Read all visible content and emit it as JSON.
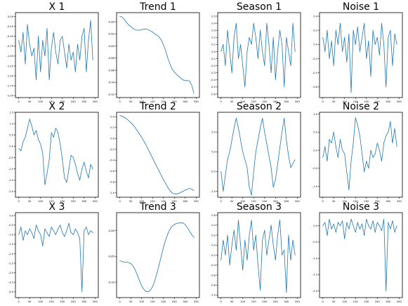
{
  "figure": {
    "line_color": "#1f77b4",
    "axes_color": "#000000",
    "background": "#ffffff"
  },
  "chart_data": [
    {
      "type": "line",
      "title": "X 1",
      "xlabel": "",
      "ylabel": "",
      "xlim": [
        -15,
        365
      ],
      "ylim": [
        -2.05,
        0.1
      ],
      "xticks": [
        0,
        50,
        100,
        150,
        200,
        250,
        300,
        350
      ],
      "yticks": [
        0.0,
        -0.25,
        -0.5,
        -0.75,
        -1.0,
        -1.25,
        -1.5,
        -1.75,
        -2.0
      ],
      "ytick_labels": [
        "0.00",
        "-0.25",
        "-0.50",
        "-0.75",
        "-1.00",
        "-1.25",
        "-1.50",
        "-1.75",
        "-2.00"
      ],
      "x": [
        0,
        10,
        20,
        30,
        40,
        50,
        60,
        70,
        80,
        90,
        100,
        110,
        120,
        130,
        140,
        150,
        160,
        170,
        180,
        190,
        200,
        210,
        220,
        230,
        240,
        250,
        260,
        270,
        280,
        290,
        300,
        310,
        320,
        330,
        340
      ],
      "values": [
        -0.6,
        -0.9,
        -0.4,
        -1.2,
        -0.2,
        -0.7,
        -1.0,
        -0.8,
        -1.6,
        -0.5,
        -1.4,
        -0.6,
        -1.0,
        -0.3,
        -1.6,
        -0.8,
        -0.4,
        -0.9,
        -1.2,
        -0.6,
        -0.5,
        -0.9,
        -1.3,
        -0.7,
        -1.1,
        -0.9,
        -1.4,
        -0.7,
        -1.1,
        -0.5,
        -0.3,
        -1.4,
        -0.6,
        -0.1,
        -1.1
      ]
    },
    {
      "type": "line",
      "title": "Trend 1",
      "xlabel": "",
      "ylabel": "",
      "xlim": [
        -15,
        365
      ],
      "ylim": [
        -0.925,
        -0.785
      ],
      "xticks": [
        0,
        50,
        100,
        150,
        200,
        250,
        300,
        350
      ],
      "yticks": [
        -0.8,
        -0.82,
        -0.84,
        -0.86,
        -0.88,
        -0.9,
        -0.92
      ],
      "ytick_labels": [
        "-0.80",
        "-0.82",
        "-0.84",
        "-0.86",
        "-0.88",
        "-0.90",
        "-0.92"
      ],
      "x": [
        0,
        10,
        20,
        30,
        40,
        50,
        60,
        70,
        80,
        90,
        100,
        110,
        120,
        130,
        140,
        150,
        160,
        170,
        180,
        190,
        200,
        210,
        220,
        230,
        240,
        250,
        260,
        270,
        280,
        290,
        300,
        310,
        320,
        330,
        340
      ],
      "values": [
        -0.791,
        -0.792,
        -0.796,
        -0.801,
        -0.805,
        -0.808,
        -0.811,
        -0.813,
        -0.814,
        -0.814,
        -0.813,
        -0.812,
        -0.812,
        -0.813,
        -0.815,
        -0.817,
        -0.82,
        -0.822,
        -0.825,
        -0.83,
        -0.838,
        -0.848,
        -0.86,
        -0.87,
        -0.878,
        -0.883,
        -0.887,
        -0.89,
        -0.893,
        -0.896,
        -0.897,
        -0.897,
        -0.898,
        -0.905,
        -0.918
      ]
    },
    {
      "type": "line",
      "title": "Season 1",
      "xlabel": "",
      "ylabel": "",
      "xlim": [
        -15,
        365
      ],
      "ylim": [
        -0.65,
        0.55
      ],
      "xticks": [
        0,
        50,
        100,
        150,
        200,
        250,
        300,
        350
      ],
      "yticks": [
        0.5,
        0.4,
        0.3,
        0.2,
        0.1,
        0.0,
        -0.1,
        -0.2,
        -0.3,
        -0.4,
        -0.5,
        -0.6
      ],
      "ytick_labels": [
        "0.5",
        "0.4",
        "0.3",
        "0.2",
        "0.1",
        "0.0",
        "-0.1",
        "-0.2",
        "-0.3",
        "-0.4",
        "-0.5",
        "-0.6"
      ],
      "x": [
        0,
        10,
        20,
        30,
        40,
        50,
        60,
        70,
        80,
        90,
        100,
        110,
        120,
        130,
        140,
        150,
        160,
        170,
        180,
        190,
        200,
        210,
        220,
        230,
        240,
        250,
        260,
        270,
        280,
        290,
        300,
        310,
        320,
        330,
        340
      ],
      "values": [
        0.0,
        0.1,
        -0.2,
        0.3,
        0.0,
        -0.3,
        0.2,
        0.4,
        -0.1,
        0.1,
        -0.2,
        -0.5,
        0.0,
        0.2,
        0.1,
        0.4,
        0.2,
        -0.1,
        0.3,
        0.0,
        -0.2,
        0.4,
        0.1,
        -0.3,
        0.2,
        -0.4,
        0.0,
        0.3,
        0.1,
        -0.5,
        0.2,
        0.0,
        -0.2,
        0.4,
        0.0
      ]
    },
    {
      "type": "line",
      "title": "Noise 1",
      "xlabel": "",
      "ylabel": "",
      "xlim": [
        -15,
        365
      ],
      "ylim": [
        -0.75,
        0.45
      ],
      "xticks": [
        0,
        50,
        100,
        150,
        200,
        250,
        300,
        350
      ],
      "yticks": [
        0.4,
        0.2,
        0.0,
        -0.2,
        -0.4,
        -0.6
      ],
      "ytick_labels": [
        "0.4",
        "0.2",
        "0.0",
        "-0.2",
        "-0.4",
        "-0.6"
      ],
      "x": [
        0,
        10,
        20,
        30,
        40,
        50,
        60,
        70,
        80,
        90,
        100,
        110,
        120,
        130,
        140,
        150,
        160,
        170,
        180,
        190,
        200,
        210,
        220,
        230,
        240,
        250,
        260,
        270,
        280,
        290,
        300,
        310,
        320,
        330,
        340
      ],
      "values": [
        0.1,
        -0.1,
        0.2,
        -0.2,
        0.05,
        -0.3,
        0.2,
        0.0,
        0.3,
        -0.1,
        0.1,
        -0.25,
        0.15,
        -0.68,
        0.2,
        0.0,
        0.25,
        -0.1,
        0.1,
        0.3,
        -0.2,
        0.05,
        -0.45,
        0.2,
        0.0,
        0.1,
        -0.15,
        0.3,
        0.0,
        -0.6,
        0.1,
        0.2,
        -0.3,
        0.15,
        0.0
      ]
    },
    {
      "type": "line",
      "title": "X 2",
      "xlabel": "",
      "ylabel": "",
      "xlim": [
        -15,
        365
      ],
      "ylim": [
        -2.25,
        1.5
      ],
      "xticks": [
        0,
        50,
        100,
        150,
        200,
        250,
        300,
        350
      ],
      "yticks": [
        1.5,
        1.0,
        0.5,
        0.0,
        -0.5,
        -1.0,
        -1.5,
        -2.0
      ],
      "ytick_labels": [
        "1.5",
        "1.0",
        "0.5",
        "0.0",
        "-0.5",
        "-1.0",
        "-1.5",
        "-2.0"
      ],
      "x": [
        0,
        10,
        20,
        30,
        40,
        50,
        60,
        70,
        80,
        90,
        100,
        110,
        120,
        130,
        140,
        150,
        160,
        170,
        180,
        190,
        200,
        210,
        220,
        230,
        240,
        250,
        260,
        270,
        280,
        290,
        300,
        310,
        320,
        330,
        340
      ],
      "values": [
        -0.1,
        -0.2,
        0.2,
        0.4,
        0.8,
        1.2,
        0.9,
        0.5,
        0.7,
        0.3,
        0.1,
        -0.3,
        -1.7,
        -1.2,
        -0.6,
        0.6,
        0.4,
        0.8,
        0.6,
        0.1,
        -0.6,
        -1.4,
        -1.6,
        -1.0,
        -0.4,
        -0.5,
        -0.8,
        -1.2,
        -1.5,
        -1.0,
        -0.7,
        -1.1,
        -1.4,
        -0.8,
        -1.0
      ]
    },
    {
      "type": "line",
      "title": "Trend 2",
      "xlabel": "",
      "ylabel": "",
      "xlim": [
        -15,
        365
      ],
      "ylim": [
        -1.08,
        0.48
      ],
      "xticks": [
        0,
        50,
        100,
        150,
        200,
        250,
        300,
        350
      ],
      "yticks": [
        0.4,
        0.2,
        0.0,
        -0.2,
        -0.4,
        -0.6,
        -0.8,
        -1.0
      ],
      "ytick_labels": [
        "0.4",
        "0.2",
        "0.0",
        "-0.2",
        "-0.4",
        "-0.6",
        "-0.8",
        "-1.0"
      ],
      "x": [
        0,
        10,
        20,
        30,
        40,
        50,
        60,
        70,
        80,
        90,
        100,
        110,
        120,
        130,
        140,
        150,
        160,
        170,
        180,
        190,
        200,
        210,
        220,
        230,
        240,
        250,
        260,
        270,
        280,
        290,
        300,
        310,
        320,
        330,
        340
      ],
      "values": [
        0.42,
        0.41,
        0.39,
        0.36,
        0.33,
        0.29,
        0.25,
        0.2,
        0.14,
        0.08,
        0.02,
        -0.05,
        -0.12,
        -0.2,
        -0.28,
        -0.36,
        -0.44,
        -0.52,
        -0.6,
        -0.68,
        -0.76,
        -0.83,
        -0.9,
        -0.96,
        -1.0,
        -1.02,
        -1.02,
        -1.01,
        -0.99,
        -0.97,
        -0.95,
        -0.93,
        -0.92,
        -0.93,
        -0.96
      ]
    },
    {
      "type": "line",
      "title": "Season 2",
      "xlabel": "",
      "ylabel": "",
      "xlim": [
        -15,
        365
      ],
      "ylim": [
        -1.15,
        1.0
      ],
      "xticks": [
        0,
        50,
        100,
        150,
        200,
        250,
        300,
        350
      ],
      "yticks": [
        0.5,
        0.0,
        -0.5,
        -1.0
      ],
      "ytick_labels": [
        "0.5",
        "0.0",
        "-0.5",
        "-1.0"
      ],
      "x": [
        0,
        10,
        20,
        30,
        40,
        50,
        60,
        70,
        80,
        90,
        100,
        110,
        120,
        130,
        140,
        150,
        160,
        170,
        180,
        190,
        200,
        210,
        220,
        230,
        240,
        250,
        260,
        270,
        280,
        290,
        300,
        310,
        320,
        330,
        340
      ],
      "values": [
        -0.5,
        -1.0,
        -0.6,
        -0.2,
        0.0,
        0.3,
        0.6,
        0.85,
        0.6,
        0.3,
        0.0,
        -0.2,
        -0.4,
        -0.9,
        -1.1,
        -0.5,
        0.0,
        0.3,
        0.6,
        0.85,
        0.5,
        0.2,
        -0.1,
        -0.4,
        -0.9,
        -0.7,
        -0.3,
        0.1,
        0.5,
        0.85,
        0.3,
        -0.1,
        -0.4,
        -0.3,
        -0.2
      ]
    },
    {
      "type": "line",
      "title": "Noise 2",
      "xlabel": "",
      "ylabel": "",
      "xlim": [
        -15,
        365
      ],
      "ylim": [
        -1.3,
        1.05
      ],
      "xticks": [
        0,
        50,
        100,
        150,
        200,
        250,
        300,
        350
      ],
      "yticks": [
        1.0,
        0.5,
        0.0,
        -0.5,
        -1.0
      ],
      "ytick_labels": [
        "1.0",
        "0.5",
        "0.0",
        "-0.5",
        "-1.0"
      ],
      "x": [
        0,
        10,
        20,
        30,
        40,
        50,
        60,
        70,
        80,
        90,
        100,
        110,
        120,
        130,
        140,
        150,
        160,
        170,
        180,
        190,
        200,
        210,
        220,
        230,
        240,
        250,
        260,
        270,
        280,
        290,
        300,
        310,
        320,
        330,
        340
      ],
      "values": [
        -0.2,
        0.1,
        -0.3,
        0.3,
        0.2,
        0.5,
        0.1,
        -0.2,
        0.3,
        0.0,
        -0.1,
        -0.6,
        -1.1,
        -0.3,
        0.2,
        0.9,
        0.7,
        0.4,
        -0.1,
        -0.6,
        -0.3,
        -0.5,
        0.0,
        -0.2,
        -0.1,
        0.2,
        0.0,
        -0.3,
        0.2,
        0.4,
        0.5,
        0.8,
        0.2,
        0.6,
        0.1
      ]
    },
    {
      "type": "line",
      "title": "X 3",
      "xlabel": "",
      "ylabel": "",
      "xlim": [
        -15,
        365
      ],
      "ylim": [
        -4.3,
        0.15
      ],
      "xticks": [
        0,
        50,
        100,
        150,
        200,
        250,
        300,
        350
      ],
      "yticks": [
        0.0,
        -0.5,
        -1.0,
        -1.5,
        -2.0,
        -2.5,
        -3.0,
        -3.5,
        -4.0
      ],
      "ytick_labels": [
        "0.0",
        "-0.5",
        "-1.0",
        "-1.5",
        "-2.0",
        "-2.5",
        "-3.0",
        "-3.5",
        "-4.0"
      ],
      "x": [
        0,
        10,
        20,
        30,
        40,
        50,
        60,
        70,
        80,
        90,
        100,
        110,
        120,
        130,
        140,
        150,
        160,
        170,
        180,
        190,
        200,
        210,
        220,
        230,
        240,
        250,
        260,
        270,
        280,
        290,
        300,
        310,
        320,
        330,
        340
      ],
      "values": [
        -1.0,
        -0.6,
        -1.3,
        -0.8,
        -1.0,
        -0.7,
        -0.9,
        -1.2,
        -0.5,
        -0.8,
        -1.0,
        -1.6,
        -0.7,
        -0.9,
        -1.1,
        -0.6,
        -0.8,
        -1.0,
        -0.7,
        -0.5,
        -0.9,
        -1.1,
        -0.8,
        -0.4,
        -0.9,
        -1.0,
        -0.7,
        -0.9,
        -1.2,
        -4.0,
        -0.8,
        -0.6,
        -1.0,
        -0.8,
        -0.9
      ]
    },
    {
      "type": "line",
      "title": "Trend 3",
      "xlabel": "",
      "ylabel": "",
      "xlim": [
        -15,
        365
      ],
      "ylim": [
        -0.93,
        -0.765
      ],
      "xticks": [
        0,
        50,
        100,
        150,
        200,
        250,
        300,
        350
      ],
      "yticks": [
        -0.8,
        -0.85,
        -0.9
      ],
      "ytick_labels": [
        "-0.80",
        "-0.85",
        "-0.90"
      ],
      "x": [
        0,
        10,
        20,
        30,
        40,
        50,
        60,
        70,
        80,
        90,
        100,
        110,
        120,
        130,
        140,
        150,
        160,
        170,
        180,
        190,
        200,
        210,
        220,
        230,
        240,
        250,
        260,
        270,
        280,
        290,
        300,
        310,
        320,
        330,
        340
      ],
      "values": [
        -0.858,
        -0.86,
        -0.861,
        -0.861,
        -0.862,
        -0.864,
        -0.868,
        -0.876,
        -0.886,
        -0.897,
        -0.907,
        -0.914,
        -0.918,
        -0.919,
        -0.916,
        -0.909,
        -0.898,
        -0.883,
        -0.866,
        -0.849,
        -0.832,
        -0.818,
        -0.806,
        -0.797,
        -0.791,
        -0.788,
        -0.786,
        -0.785,
        -0.785,
        -0.785,
        -0.788,
        -0.794,
        -0.801,
        -0.808,
        -0.813
      ]
    },
    {
      "type": "line",
      "title": "Season 3",
      "xlabel": "",
      "ylabel": "",
      "xlim": [
        -15,
        365
      ],
      "ylim": [
        -1.05,
        0.65
      ],
      "xticks": [
        0,
        50,
        100,
        150,
        200,
        250,
        300,
        350
      ],
      "yticks": [
        0.6,
        0.4,
        0.2,
        0.0,
        -0.2,
        -0.4,
        -0.6,
        -0.8,
        -1.0
      ],
      "ytick_labels": [
        "0.6",
        "0.4",
        "0.2",
        "0.0",
        "-0.2",
        "-0.4",
        "-0.6",
        "-0.8",
        "-1.0"
      ],
      "x": [
        0,
        10,
        20,
        30,
        40,
        50,
        60,
        70,
        80,
        90,
        100,
        110,
        120,
        130,
        140,
        150,
        160,
        170,
        180,
        190,
        200,
        210,
        220,
        230,
        240,
        250,
        260,
        270,
        280,
        290,
        300,
        310,
        320,
        330,
        340
      ],
      "values": [
        -0.3,
        0.1,
        -0.2,
        0.2,
        -0.4,
        0.0,
        0.3,
        -0.1,
        0.5,
        0.0,
        -0.5,
        0.1,
        -0.3,
        0.2,
        0.5,
        -0.1,
        0.2,
        -0.4,
        -0.9,
        0.1,
        0.3,
        -0.2,
        0.1,
        0.4,
        0.0,
        -0.3,
        0.2,
        0.5,
        -0.2,
        -0.1,
        -0.95,
        0.2,
        -0.3,
        0.1,
        -0.2
      ]
    },
    {
      "type": "line",
      "title": "Noise 3",
      "xlabel": "",
      "ylabel": "",
      "xlim": [
        -15,
        365
      ],
      "ylim": [
        -2.2,
        0.4
      ],
      "xticks": [
        0,
        50,
        100,
        150,
        200,
        250,
        300,
        350
      ],
      "yticks": [
        0.0,
        -0.5,
        -1.0,
        -1.5,
        -2.0
      ],
      "ytick_labels": [
        "0.0",
        "-0.5",
        "-1.0",
        "-1.5",
        "-2.0"
      ],
      "x": [
        0,
        10,
        20,
        30,
        40,
        50,
        60,
        70,
        80,
        90,
        100,
        110,
        120,
        130,
        140,
        150,
        160,
        170,
        180,
        190,
        200,
        210,
        220,
        230,
        240,
        250,
        260,
        270,
        280,
        290,
        300,
        310,
        320,
        330,
        340
      ],
      "values": [
        0.0,
        0.1,
        -0.3,
        0.2,
        -0.1,
        0.05,
        -0.2,
        0.1,
        0.0,
        0.15,
        -0.4,
        0.1,
        -0.1,
        0.2,
        0.0,
        -0.2,
        0.1,
        -0.1,
        0.05,
        -0.3,
        0.2,
        0.0,
        -0.1,
        0.15,
        -0.2,
        0.1,
        0.0,
        -0.15,
        0.2,
        -2.0,
        0.1,
        -0.1,
        0.15,
        -0.2,
        0.0
      ]
    }
  ]
}
